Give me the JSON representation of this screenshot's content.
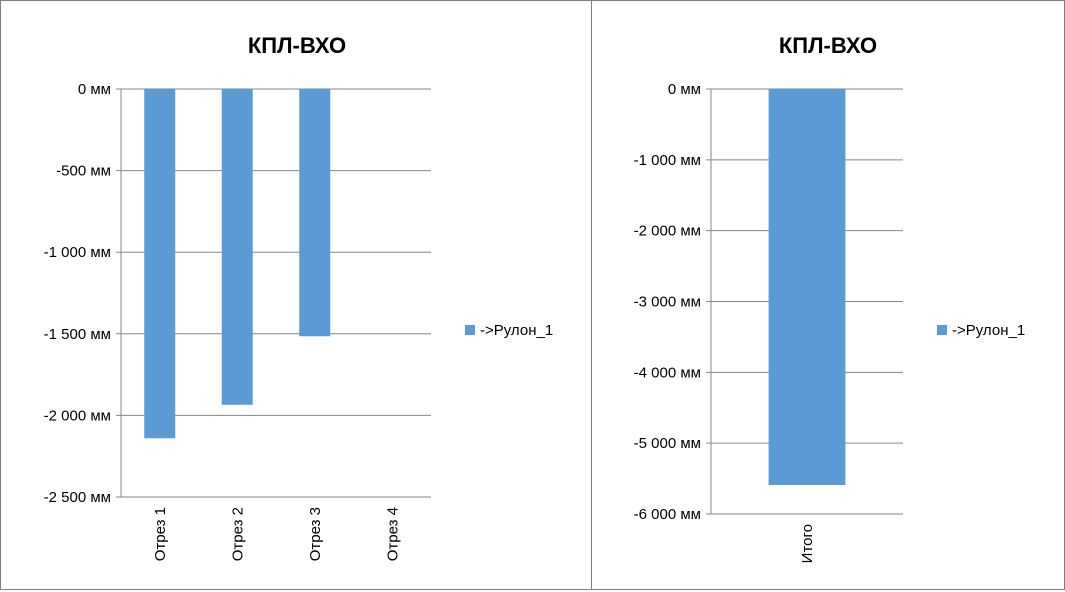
{
  "chart_data": [
    {
      "type": "bar",
      "title": "КПЛ-ВХО",
      "categories": [
        "Отрез 1",
        "Отрез 2",
        "Отрез 3",
        "Отрез 4"
      ],
      "series": [
        {
          "name": "->Рулон_1",
          "values": [
            -2140,
            -1935,
            -1515,
            0
          ]
        }
      ],
      "ylim": [
        -2500,
        0
      ],
      "yticks": [
        0,
        -500,
        -1000,
        -1500,
        -2000,
        -2500
      ],
      "ytick_labels": [
        "0 мм",
        "-500 мм",
        "-1 000 мм",
        "-1 500 мм",
        "-2 000 мм",
        "-2 500 мм"
      ],
      "grid": true,
      "legend": "right",
      "color": "#5b9bd5"
    },
    {
      "type": "bar",
      "title": "КПЛ-ВХО",
      "categories": [
        "Итого"
      ],
      "series": [
        {
          "name": "->Рулон_1",
          "values": [
            -5590
          ]
        }
      ],
      "ylim": [
        -6000,
        0
      ],
      "yticks": [
        0,
        -1000,
        -2000,
        -3000,
        -4000,
        -5000,
        -6000
      ],
      "ytick_labels": [
        "0 мм",
        "-1 000 мм",
        "-2 000 мм",
        "-3 000 мм",
        "-4 000 мм",
        "-5 000 мм",
        "-6 000 мм"
      ],
      "grid": true,
      "legend": "right",
      "color": "#5b9bd5"
    }
  ]
}
